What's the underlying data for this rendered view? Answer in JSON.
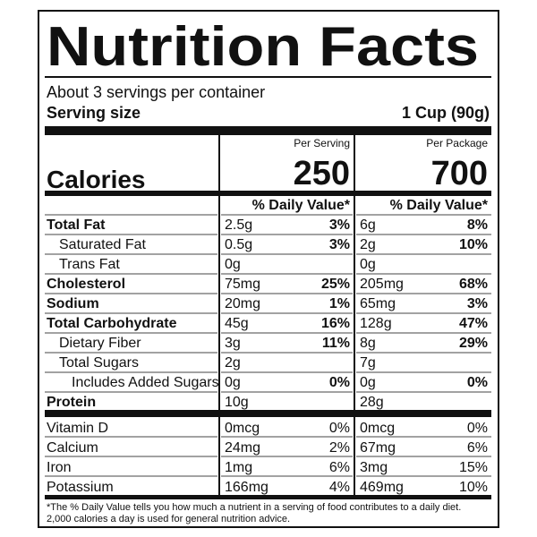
{
  "title": "Nutrition Facts",
  "servings": "About 3 servings per container",
  "serving_size": {
    "label": "Serving size",
    "value": "1 Cup (90g)"
  },
  "columns": [
    "Per Serving",
    "Per Package"
  ],
  "calories": {
    "label": "Calories",
    "values": [
      250,
      700
    ]
  },
  "dv_header": "% Daily Value*",
  "nutrients": [
    {
      "name": "Total Fat",
      "bold": true,
      "indent": 0,
      "amounts": [
        "2.5g",
        "6g"
      ],
      "dv": [
        "3%",
        "8%"
      ]
    },
    {
      "name": "Saturated Fat",
      "bold": false,
      "indent": 1,
      "amounts": [
        "0.5g",
        "2g"
      ],
      "dv": [
        "3%",
        "10%"
      ]
    },
    {
      "name": "Trans Fat",
      "bold": false,
      "indent": 1,
      "amounts": [
        "0g",
        "0g"
      ],
      "dv": null
    },
    {
      "name": "Cholesterol",
      "bold": true,
      "indent": 0,
      "amounts": [
        "75mg",
        "205mg"
      ],
      "dv": [
        "25%",
        "68%"
      ]
    },
    {
      "name": "Sodium",
      "bold": true,
      "indent": 0,
      "amounts": [
        "20mg",
        "65mg"
      ],
      "dv": [
        "1%",
        "3%"
      ]
    },
    {
      "name": "Total Carbohydrate",
      "bold": true,
      "indent": 0,
      "amounts": [
        "45g",
        "128g"
      ],
      "dv": [
        "16%",
        "47%"
      ]
    },
    {
      "name": "Dietary Fiber",
      "bold": false,
      "indent": 1,
      "amounts": [
        "3g",
        "8g"
      ],
      "dv": [
        "11%",
        "29%"
      ]
    },
    {
      "name": "Total Sugars",
      "bold": false,
      "indent": 1,
      "amounts": [
        "2g",
        "7g"
      ],
      "dv": null
    },
    {
      "name": "Includes Added Sugars",
      "bold": false,
      "indent": 2,
      "amounts": [
        "0g",
        "0g"
      ],
      "dv": [
        "0%",
        "0%"
      ]
    },
    {
      "name": "Protein",
      "bold": true,
      "indent": 0,
      "amounts": [
        "10g",
        "28g"
      ],
      "dv": null
    }
  ],
  "vitamins": [
    {
      "name": "Vitamin D",
      "amounts": [
        "0mcg",
        "0mcg"
      ],
      "dv": [
        "0%",
        "0%"
      ]
    },
    {
      "name": "Calcium",
      "amounts": [
        "24mg",
        "67mg"
      ],
      "dv": [
        "2%",
        "6%"
      ]
    },
    {
      "name": "Iron",
      "amounts": [
        "1mg",
        "3mg"
      ],
      "dv": [
        "6%",
        "15%"
      ]
    },
    {
      "name": "Potassium",
      "amounts": [
        "166mg",
        "469mg"
      ],
      "dv": [
        "4%",
        "10%"
      ]
    }
  ],
  "footnote": [
    "*The % Daily Value tells you how much a nutrient in a serving of food contributes to a daily diet.",
    "2,000 calories a day is used for general nutrition advice."
  ]
}
